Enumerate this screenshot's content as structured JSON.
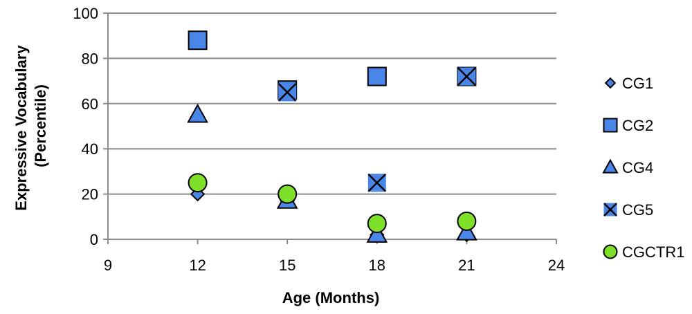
{
  "chart_data": {
    "type": "scatter",
    "title": "",
    "xlabel": "Age (Months)",
    "ylabel_lines": [
      "Expressive Vocabulary",
      "(Percentile)"
    ],
    "xlim": [
      9,
      24
    ],
    "ylim": [
      0,
      100
    ],
    "xticks": [
      9,
      12,
      15,
      18,
      21,
      24
    ],
    "yticks": [
      0,
      20,
      40,
      60,
      80,
      100
    ],
    "grid": "horizontal",
    "legend_position": "right",
    "series": [
      {
        "name": "CG1",
        "marker": "diamond",
        "color": "#4a86e8",
        "points": [
          [
            12,
            20
          ],
          [
            15,
            17
          ],
          [
            18,
            2
          ],
          [
            21,
            2
          ]
        ]
      },
      {
        "name": "CG2",
        "marker": "square",
        "color": "#4a86e8",
        "points": [
          [
            12,
            88
          ],
          [
            15,
            66
          ],
          [
            18,
            72
          ],
          [
            21,
            72
          ]
        ]
      },
      {
        "name": "CG4",
        "marker": "triangle",
        "color": "#4a86e8",
        "points": [
          [
            12,
            55
          ],
          [
            15,
            17
          ],
          [
            18,
            2
          ],
          [
            21,
            3
          ]
        ]
      },
      {
        "name": "CG5",
        "marker": "x-square",
        "color": "#4a86e8",
        "points": [
          [
            15,
            65
          ],
          [
            18,
            25
          ],
          [
            21,
            72
          ]
        ]
      },
      {
        "name": "CGCTR1",
        "marker": "circle",
        "color": "#7fe02a",
        "points": [
          [
            12,
            25
          ],
          [
            15,
            20
          ],
          [
            18,
            7
          ],
          [
            21,
            8
          ]
        ]
      }
    ]
  }
}
